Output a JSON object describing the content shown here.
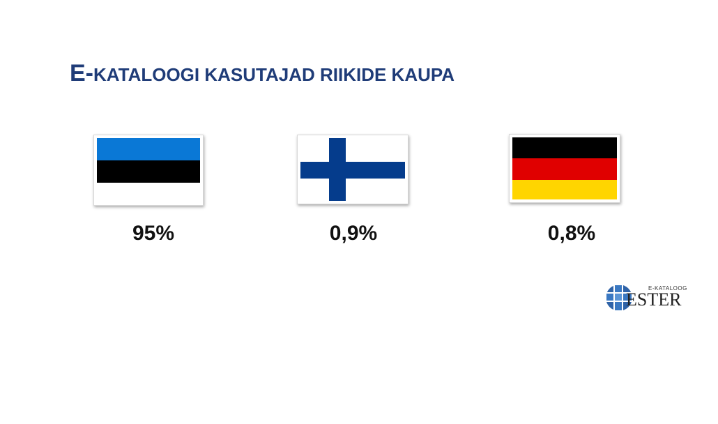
{
  "slide": {
    "title_first": "E-",
    "title_rest": "KATALOOGI KASUTAJAD RIIKIDE KAUPA"
  },
  "countries": [
    {
      "flag_icon": "estonia-flag-icon",
      "percentage": "95%",
      "colors": [
        "#0072ce",
        "#000000",
        "#ffffff"
      ]
    },
    {
      "flag_icon": "finland-flag-icon",
      "percentage": "0,9%",
      "colors": [
        "#ffffff",
        "#003580"
      ]
    },
    {
      "flag_icon": "germany-flag-icon",
      "percentage": "0,8%",
      "colors": [
        "#000000",
        "#dd0000",
        "#ffce00"
      ]
    }
  ],
  "logo": {
    "subtitle": "E-KATALOOG",
    "name": "ESTER",
    "icon": "ester-grid-icon",
    "color": "#3a6fb0"
  },
  "theme": {
    "title_color": "#1f3c78"
  }
}
